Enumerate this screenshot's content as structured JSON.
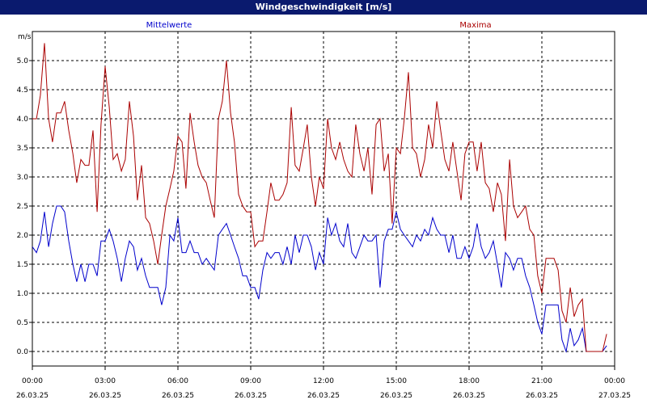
{
  "window": {
    "title": "Windgeschwindigkeit [m/s]"
  },
  "chart_data": {
    "type": "line",
    "title": "Windgeschwindigkeit [m/s]",
    "ylabel": "m/s",
    "ylim": [
      -0.25,
      5.5
    ],
    "yticks": [
      "0.0",
      "0.5",
      "1.0",
      "1.5",
      "2.0",
      "2.5",
      "3.0",
      "3.5",
      "4.0",
      "4.5",
      "5.0"
    ],
    "xlim": [
      0,
      24
    ],
    "xticks": [
      {
        "time": "00:00",
        "date": "26.03.25"
      },
      {
        "time": "03:00",
        "date": "26.03.25"
      },
      {
        "time": "06:00",
        "date": "26.03.25"
      },
      {
        "time": "09:00",
        "date": "26.03.25"
      },
      {
        "time": "12:00",
        "date": "26.03.25"
      },
      {
        "time": "15:00",
        "date": "26.03.25"
      },
      {
        "time": "18:00",
        "date": "26.03.25"
      },
      {
        "time": "21:00",
        "date": "26.03.25"
      },
      {
        "time": "00:00",
        "date": "27.03.25"
      }
    ],
    "grid": true,
    "colors": {
      "Mittelwerte": "#0000cc",
      "Maxima": "#aa0000"
    },
    "series": [
      {
        "name": "Mittelwerte",
        "points": [
          [
            0,
            1.8
          ],
          [
            0.17,
            1.7
          ],
          [
            0.33,
            1.9
          ],
          [
            0.5,
            2.4
          ],
          [
            0.67,
            1.8
          ],
          [
            0.83,
            2.2
          ],
          [
            1,
            2.5
          ],
          [
            1.17,
            2.5
          ],
          [
            1.33,
            2.4
          ],
          [
            1.5,
            1.9
          ],
          [
            1.67,
            1.5
          ],
          [
            1.83,
            1.2
          ],
          [
            2,
            1.5
          ],
          [
            2.17,
            1.2
          ],
          [
            2.33,
            1.5
          ],
          [
            2.5,
            1.5
          ],
          [
            2.67,
            1.3
          ],
          [
            2.83,
            1.9
          ],
          [
            3,
            1.9
          ],
          [
            3.17,
            2.1
          ],
          [
            3.33,
            1.9
          ],
          [
            3.5,
            1.6
          ],
          [
            3.67,
            1.2
          ],
          [
            3.83,
            1.6
          ],
          [
            4,
            1.9
          ],
          [
            4.17,
            1.8
          ],
          [
            4.33,
            1.4
          ],
          [
            4.5,
            1.6
          ],
          [
            4.67,
            1.3
          ],
          [
            4.83,
            1.1
          ],
          [
            5,
            1.1
          ],
          [
            5.17,
            1.1
          ],
          [
            5.33,
            0.8
          ],
          [
            5.5,
            1.1
          ],
          [
            5.67,
            2.0
          ],
          [
            5.83,
            1.9
          ],
          [
            6,
            2.3
          ],
          [
            6.17,
            1.7
          ],
          [
            6.33,
            1.7
          ],
          [
            6.5,
            1.9
          ],
          [
            6.67,
            1.7
          ],
          [
            6.83,
            1.7
          ],
          [
            7,
            1.5
          ],
          [
            7.17,
            1.6
          ],
          [
            7.33,
            1.5
          ],
          [
            7.5,
            1.4
          ],
          [
            7.67,
            2.0
          ],
          [
            7.83,
            2.1
          ],
          [
            8,
            2.2
          ],
          [
            8.17,
            2.0
          ],
          [
            8.33,
            1.8
          ],
          [
            8.5,
            1.6
          ],
          [
            8.67,
            1.3
          ],
          [
            8.83,
            1.3
          ],
          [
            9,
            1.1
          ],
          [
            9.17,
            1.1
          ],
          [
            9.33,
            0.9
          ],
          [
            9.5,
            1.4
          ],
          [
            9.67,
            1.7
          ],
          [
            9.83,
            1.6
          ],
          [
            10,
            1.7
          ],
          [
            10.17,
            1.7
          ],
          [
            10.33,
            1.5
          ],
          [
            10.5,
            1.8
          ],
          [
            10.67,
            1.5
          ],
          [
            10.83,
            2.0
          ],
          [
            11,
            1.7
          ],
          [
            11.17,
            2.0
          ],
          [
            11.33,
            2.0
          ],
          [
            11.5,
            1.8
          ],
          [
            11.67,
            1.4
          ],
          [
            11.83,
            1.7
          ],
          [
            12,
            1.5
          ],
          [
            12.17,
            2.3
          ],
          [
            12.33,
            2.0
          ],
          [
            12.5,
            2.2
          ],
          [
            12.67,
            1.9
          ],
          [
            12.83,
            1.8
          ],
          [
            13,
            2.2
          ],
          [
            13.17,
            1.7
          ],
          [
            13.33,
            1.6
          ],
          [
            13.5,
            1.8
          ],
          [
            13.67,
            2.0
          ],
          [
            13.83,
            1.9
          ],
          [
            14,
            1.9
          ],
          [
            14.17,
            2.0
          ],
          [
            14.33,
            1.1
          ],
          [
            14.5,
            1.9
          ],
          [
            14.67,
            2.1
          ],
          [
            14.83,
            2.1
          ],
          [
            15,
            2.4
          ],
          [
            15.17,
            2.1
          ],
          [
            15.33,
            2.0
          ],
          [
            15.5,
            1.9
          ],
          [
            15.67,
            1.8
          ],
          [
            15.83,
            2.0
          ],
          [
            16,
            1.9
          ],
          [
            16.17,
            2.1
          ],
          [
            16.33,
            2.0
          ],
          [
            16.5,
            2.3
          ],
          [
            16.67,
            2.1
          ],
          [
            16.83,
            2.0
          ],
          [
            17,
            2.0
          ],
          [
            17.17,
            1.7
          ],
          [
            17.33,
            2.0
          ],
          [
            17.5,
            1.6
          ],
          [
            17.67,
            1.6
          ],
          [
            17.83,
            1.8
          ],
          [
            18,
            1.6
          ],
          [
            18.17,
            1.8
          ],
          [
            18.33,
            2.2
          ],
          [
            18.5,
            1.8
          ],
          [
            18.67,
            1.6
          ],
          [
            18.83,
            1.7
          ],
          [
            19,
            1.9
          ],
          [
            19.17,
            1.5
          ],
          [
            19.33,
            1.1
          ],
          [
            19.5,
            1.7
          ],
          [
            19.67,
            1.6
          ],
          [
            19.83,
            1.4
          ],
          [
            20,
            1.6
          ],
          [
            20.17,
            1.6
          ],
          [
            20.33,
            1.3
          ],
          [
            20.5,
            1.1
          ],
          [
            20.67,
            0.8
          ],
          [
            20.83,
            0.5
          ],
          [
            21,
            0.3
          ],
          [
            21.17,
            0.8
          ],
          [
            21.33,
            0.8
          ],
          [
            21.5,
            0.8
          ],
          [
            21.67,
            0.8
          ],
          [
            21.83,
            0.2
          ],
          [
            22,
            0.0
          ],
          [
            22.17,
            0.4
          ],
          [
            22.33,
            0.1
          ],
          [
            22.5,
            0.2
          ],
          [
            22.67,
            0.4
          ],
          [
            22.83,
            0.0
          ],
          [
            23,
            0.0
          ],
          [
            23.17,
            0.0
          ],
          [
            23.33,
            0.0
          ],
          [
            23.5,
            0.0
          ],
          [
            23.67,
            0.1
          ]
        ]
      },
      {
        "name": "Maxima",
        "points": [
          [
            0,
            4.0
          ],
          [
            0.17,
            4.0
          ],
          [
            0.33,
            4.4
          ],
          [
            0.5,
            5.3
          ],
          [
            0.67,
            4.0
          ],
          [
            0.83,
            3.6
          ],
          [
            1,
            4.1
          ],
          [
            1.17,
            4.1
          ],
          [
            1.33,
            4.3
          ],
          [
            1.5,
            3.8
          ],
          [
            1.67,
            3.4
          ],
          [
            1.83,
            2.9
          ],
          [
            2,
            3.3
          ],
          [
            2.17,
            3.2
          ],
          [
            2.33,
            3.2
          ],
          [
            2.5,
            3.8
          ],
          [
            2.67,
            2.4
          ],
          [
            2.83,
            3.9
          ],
          [
            3,
            4.9
          ],
          [
            3.17,
            4.2
          ],
          [
            3.33,
            3.3
          ],
          [
            3.5,
            3.4
          ],
          [
            3.67,
            3.1
          ],
          [
            3.83,
            3.3
          ],
          [
            4,
            4.3
          ],
          [
            4.17,
            3.7
          ],
          [
            4.33,
            2.6
          ],
          [
            4.5,
            3.2
          ],
          [
            4.67,
            2.3
          ],
          [
            4.83,
            2.2
          ],
          [
            5,
            1.9
          ],
          [
            5.17,
            1.5
          ],
          [
            5.33,
            2.0
          ],
          [
            5.5,
            2.5
          ],
          [
            5.67,
            2.8
          ],
          [
            5.83,
            3.1
          ],
          [
            6,
            3.7
          ],
          [
            6.17,
            3.6
          ],
          [
            6.33,
            2.8
          ],
          [
            6.5,
            4.1
          ],
          [
            6.67,
            3.6
          ],
          [
            6.83,
            3.2
          ],
          [
            7,
            3.0
          ],
          [
            7.17,
            2.9
          ],
          [
            7.33,
            2.6
          ],
          [
            7.5,
            2.3
          ],
          [
            7.67,
            4.0
          ],
          [
            7.83,
            4.3
          ],
          [
            8,
            5.0
          ],
          [
            8.17,
            4.1
          ],
          [
            8.33,
            3.6
          ],
          [
            8.5,
            2.7
          ],
          [
            8.67,
            2.5
          ],
          [
            8.83,
            2.4
          ],
          [
            9,
            2.4
          ],
          [
            9.17,
            1.8
          ],
          [
            9.33,
            1.9
          ],
          [
            9.5,
            1.9
          ],
          [
            9.67,
            2.4
          ],
          [
            9.83,
            2.9
          ],
          [
            10,
            2.6
          ],
          [
            10.17,
            2.6
          ],
          [
            10.33,
            2.7
          ],
          [
            10.5,
            2.9
          ],
          [
            10.67,
            4.2
          ],
          [
            10.83,
            3.2
          ],
          [
            11,
            3.1
          ],
          [
            11.17,
            3.5
          ],
          [
            11.33,
            3.9
          ],
          [
            11.5,
            3.0
          ],
          [
            11.67,
            2.5
          ],
          [
            11.83,
            3.0
          ],
          [
            12,
            2.8
          ],
          [
            12.17,
            4.0
          ],
          [
            12.33,
            3.5
          ],
          [
            12.5,
            3.3
          ],
          [
            12.67,
            3.6
          ],
          [
            12.83,
            3.3
          ],
          [
            13,
            3.1
          ],
          [
            13.17,
            3.0
          ],
          [
            13.33,
            3.9
          ],
          [
            13.5,
            3.4
          ],
          [
            13.67,
            3.1
          ],
          [
            13.83,
            3.5
          ],
          [
            14,
            2.7
          ],
          [
            14.17,
            3.9
          ],
          [
            14.33,
            4.0
          ],
          [
            14.5,
            3.1
          ],
          [
            14.67,
            3.4
          ],
          [
            14.83,
            2.2
          ],
          [
            15,
            3.5
          ],
          [
            15.17,
            3.4
          ],
          [
            15.33,
            4.0
          ],
          [
            15.5,
            4.8
          ],
          [
            15.67,
            3.5
          ],
          [
            15.83,
            3.4
          ],
          [
            16,
            3.0
          ],
          [
            16.17,
            3.3
          ],
          [
            16.33,
            3.9
          ],
          [
            16.5,
            3.5
          ],
          [
            16.67,
            4.3
          ],
          [
            16.83,
            3.8
          ],
          [
            17,
            3.3
          ],
          [
            17.17,
            3.1
          ],
          [
            17.33,
            3.6
          ],
          [
            17.5,
            3.1
          ],
          [
            17.67,
            2.6
          ],
          [
            17.83,
            3.4
          ],
          [
            18,
            3.6
          ],
          [
            18.17,
            3.6
          ],
          [
            18.33,
            3.1
          ],
          [
            18.5,
            3.6
          ],
          [
            18.67,
            2.9
          ],
          [
            18.83,
            2.8
          ],
          [
            19,
            2.4
          ],
          [
            19.17,
            2.9
          ],
          [
            19.33,
            2.7
          ],
          [
            19.5,
            1.9
          ],
          [
            19.67,
            3.3
          ],
          [
            19.83,
            2.5
          ],
          [
            20,
            2.3
          ],
          [
            20.17,
            2.4
          ],
          [
            20.33,
            2.5
          ],
          [
            20.5,
            2.1
          ],
          [
            20.67,
            2.0
          ],
          [
            20.83,
            1.3
          ],
          [
            21,
            1.0
          ],
          [
            21.17,
            1.6
          ],
          [
            21.33,
            1.6
          ],
          [
            21.5,
            1.6
          ],
          [
            21.67,
            1.4
          ],
          [
            21.83,
            0.7
          ],
          [
            22,
            0.5
          ],
          [
            22.17,
            1.1
          ],
          [
            22.33,
            0.6
          ],
          [
            22.5,
            0.8
          ],
          [
            22.67,
            0.9
          ],
          [
            22.83,
            0.0
          ],
          [
            23,
            0.0
          ],
          [
            23.17,
            0.0
          ],
          [
            23.33,
            0.0
          ],
          [
            23.5,
            0.0
          ],
          [
            23.67,
            0.3
          ]
        ]
      }
    ]
  }
}
